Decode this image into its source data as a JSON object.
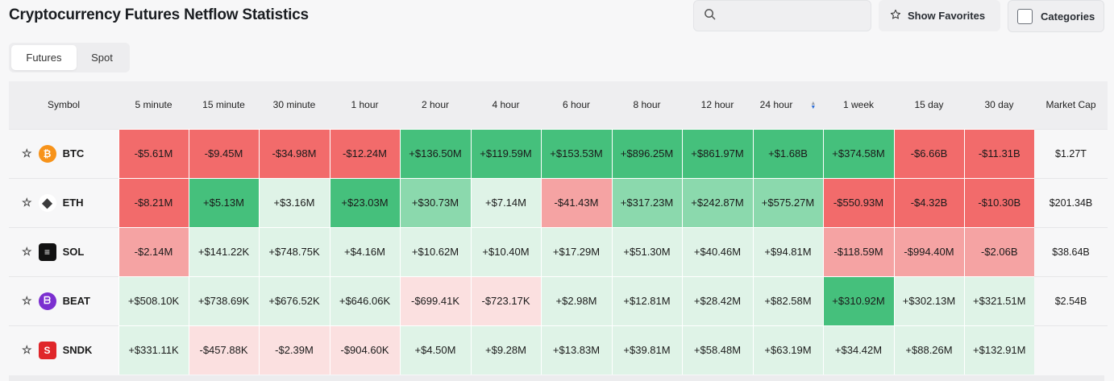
{
  "page": {
    "title": "Cryptocurrency Futures Netflow Statistics"
  },
  "search": {
    "icon": "search-icon",
    "placeholder": "",
    "value": ""
  },
  "favorites": {
    "label": "Show Favorites",
    "icon": "star-icon"
  },
  "categories": {
    "label": "Categories"
  },
  "tabs": [
    {
      "label": "Futures",
      "active": true
    },
    {
      "label": "Spot",
      "active": false
    }
  ],
  "table": {
    "columns": [
      "Symbol",
      "5 minute",
      "15 minute",
      "30 minute",
      "1 hour",
      "2 hour",
      "4 hour",
      "6 hour",
      "8 hour",
      "12 hour",
      "24 hour",
      "1 week",
      "15 day",
      "30 day",
      "Market Cap"
    ],
    "sorted_column": "24 hour",
    "rows": [
      {
        "symbol": "BTC",
        "icon": "bitcoin-icon",
        "icon_color": "#f7931a",
        "market_cap": "$1.27T",
        "values": [
          "-$5.61M",
          "-$9.45M",
          "-$34.98M",
          "-$12.24M",
          "+$136.50M",
          "+$119.59M",
          "+$153.53M",
          "+$896.25M",
          "+$861.97M",
          "+$1.68B",
          "+$374.58M",
          "-$6.66B",
          "-$11.31B"
        ]
      },
      {
        "symbol": "ETH",
        "icon": "ethereum-icon",
        "icon_color": "#3c3c3d",
        "market_cap": "$201.34B",
        "values": [
          "-$8.21M",
          "+$5.13M",
          "+$3.16M",
          "+$23.03M",
          "+$30.73M",
          "+$7.14M",
          "-$41.43M",
          "+$317.23M",
          "+$242.87M",
          "+$575.27M",
          "-$550.93M",
          "-$4.32B",
          "-$10.30B"
        ]
      },
      {
        "symbol": "SOL",
        "icon": "solana-icon",
        "icon_color": "#111111",
        "market_cap": "$38.64B",
        "values": [
          "-$2.14M",
          "+$141.22K",
          "+$748.75K",
          "+$4.16M",
          "+$10.62M",
          "+$10.40M",
          "+$17.29M",
          "+$51.30M",
          "+$40.46M",
          "+$94.81M",
          "-$118.59M",
          "-$994.40M",
          "-$2.06B"
        ]
      },
      {
        "symbol": "BEAT",
        "icon": "beat-icon",
        "icon_color": "#7b2fd0",
        "market_cap": "$2.54B",
        "values": [
          "+$508.10K",
          "+$738.69K",
          "+$676.52K",
          "+$646.06K",
          "-$699.41K",
          "-$723.17K",
          "+$2.98M",
          "+$12.81M",
          "+$28.42M",
          "+$82.58M",
          "+$310.92M",
          "+$302.13M",
          "+$321.51M"
        ]
      },
      {
        "symbol": "SNDK",
        "icon": "sandisk-icon",
        "icon_color": "#e0262a",
        "market_cap": "",
        "values": [
          "+$331.11K",
          "-$457.88K",
          "-$2.39M",
          "-$904.60K",
          "+$4.50M",
          "+$9.28M",
          "+$13.83M",
          "+$39.81M",
          "+$58.48M",
          "+$63.19M",
          "+$34.42M",
          "+$88.26M",
          "+$132.91M"
        ]
      }
    ]
  },
  "colors": {
    "neg_strong": "#f26b6b",
    "neg_mid": "#f5a3a3",
    "neg_light": "#fbe0e0",
    "pos_strong": "#45c07c",
    "pos_mid": "#8bd9ad",
    "pos_light": "#dff3e7"
  }
}
